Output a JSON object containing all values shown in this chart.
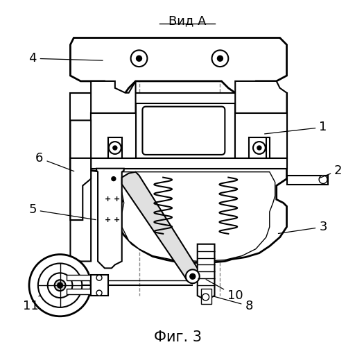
{
  "title": "Вид А",
  "caption": "Фиг. 3",
  "caption_fontsize": 15,
  "title_fontsize": 13,
  "background_color": "#ffffff",
  "line_color": "#000000",
  "label_fontsize": 13
}
